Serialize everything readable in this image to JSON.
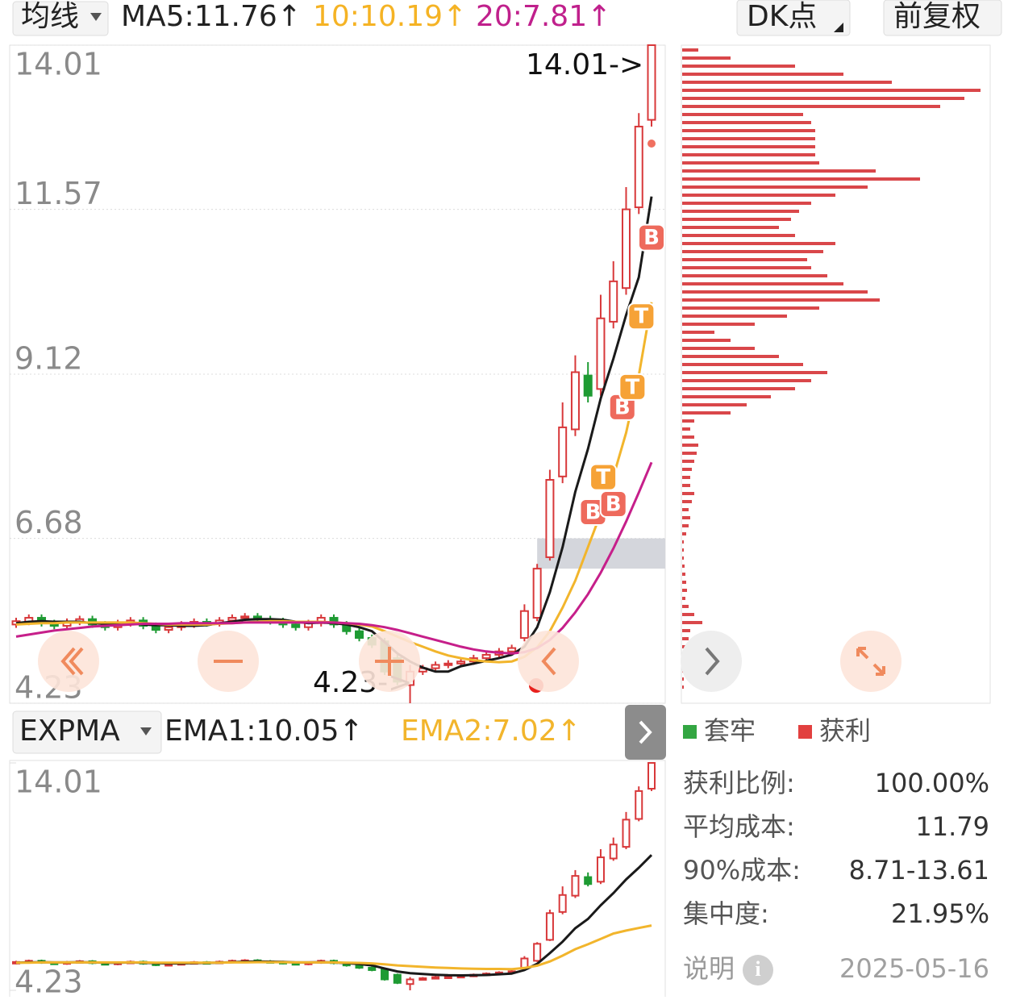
{
  "toolbar": {
    "indicator": "均线",
    "ma5_label": "MA5:11.76↑",
    "ma10_label": "10:10.19↑",
    "ma20_label": "20:7.81↑",
    "dk_button": "DK点",
    "adjust_button": "前复权"
  },
  "price_chart": {
    "type": "candlestick",
    "ylim": [
      4.23,
      14.01
    ],
    "yticks": [
      14.01,
      11.57,
      9.12,
      6.68,
      4.23
    ],
    "up_color": "#d8383a",
    "down_color": "#1e9b33",
    "open": [
      5.4,
      5.44,
      5.5,
      5.42,
      5.38,
      5.44,
      5.48,
      5.4,
      5.36,
      5.42,
      5.46,
      5.38,
      5.32,
      5.36,
      5.4,
      5.44,
      5.42,
      5.46,
      5.5,
      5.52,
      5.48,
      5.45,
      5.4,
      5.36,
      5.42,
      5.5,
      5.4,
      5.3,
      5.2,
      5.15,
      4.9,
      4.5,
      4.7,
      4.75,
      4.8,
      4.82,
      4.85,
      4.9,
      4.95,
      5.0,
      5.2,
      5.5,
      6.4,
      7.6,
      8.3,
      9.1,
      8.9,
      9.9,
      10.4,
      11.6,
      12.9
    ],
    "high": [
      5.5,
      5.55,
      5.55,
      5.47,
      5.49,
      5.53,
      5.53,
      5.45,
      5.47,
      5.51,
      5.51,
      5.43,
      5.41,
      5.45,
      5.49,
      5.49,
      5.51,
      5.55,
      5.57,
      5.57,
      5.53,
      5.5,
      5.45,
      5.47,
      5.55,
      5.55,
      5.45,
      5.35,
      5.25,
      5.2,
      4.95,
      4.8,
      4.8,
      4.85,
      4.87,
      4.9,
      4.95,
      5.0,
      5.05,
      5.1,
      5.7,
      6.3,
      7.7,
      8.7,
      9.4,
      9.3,
      10.3,
      10.8,
      11.9,
      13.0,
      14.01
    ],
    "low": [
      5.35,
      5.39,
      5.37,
      5.33,
      5.33,
      5.39,
      5.35,
      5.31,
      5.31,
      5.37,
      5.33,
      5.27,
      5.27,
      5.31,
      5.35,
      5.37,
      5.37,
      5.41,
      5.45,
      5.43,
      5.4,
      5.35,
      5.31,
      5.31,
      5.37,
      5.35,
      5.25,
      5.15,
      5.05,
      4.65,
      4.5,
      4.23,
      4.65,
      4.7,
      4.75,
      4.77,
      4.8,
      4.85,
      4.9,
      4.95,
      5.15,
      5.45,
      6.35,
      7.5,
      8.2,
      8.7,
      8.8,
      9.8,
      10.3,
      11.5,
      12.8
    ],
    "close": [
      5.45,
      5.5,
      5.42,
      5.38,
      5.44,
      5.48,
      5.4,
      5.36,
      5.42,
      5.46,
      5.38,
      5.32,
      5.36,
      5.4,
      5.44,
      5.42,
      5.46,
      5.5,
      5.52,
      5.48,
      5.45,
      5.4,
      5.36,
      5.42,
      5.5,
      5.4,
      5.3,
      5.2,
      5.1,
      4.7,
      4.55,
      4.7,
      4.75,
      4.8,
      4.82,
      4.85,
      4.9,
      4.95,
      5.0,
      5.05,
      5.6,
      6.23,
      7.55,
      8.33,
      9.15,
      8.8,
      9.95,
      10.5,
      11.57,
      12.8,
      14.01
    ],
    "ma": [
      {
        "name": "MA5",
        "color": "#1a1a1a",
        "values": [
          5.42,
          5.44,
          5.45,
          5.44,
          5.44,
          5.44,
          5.42,
          5.41,
          5.42,
          5.42,
          5.4,
          5.39,
          5.39,
          5.38,
          5.38,
          5.39,
          5.42,
          5.44,
          5.47,
          5.48,
          5.48,
          5.47,
          5.44,
          5.42,
          5.43,
          5.42,
          5.4,
          5.36,
          5.3,
          5.14,
          4.97,
          4.85,
          4.76,
          4.7,
          4.7,
          4.78,
          4.82,
          4.86,
          4.9,
          4.95,
          5.07,
          5.36,
          5.88,
          6.55,
          7.37,
          8.01,
          8.76,
          9.35,
          10.0,
          10.56,
          11.76
        ]
      },
      {
        "name": "MA10",
        "color": "#f2b52c",
        "values": [
          5.4,
          5.41,
          5.42,
          5.42,
          5.43,
          5.43,
          5.43,
          5.43,
          5.43,
          5.43,
          5.42,
          5.41,
          5.4,
          5.4,
          5.4,
          5.4,
          5.41,
          5.42,
          5.43,
          5.44,
          5.45,
          5.45,
          5.44,
          5.44,
          5.44,
          5.43,
          5.42,
          5.4,
          5.37,
          5.3,
          5.22,
          5.14,
          5.07,
          5.0,
          4.94,
          4.9,
          4.87,
          4.85,
          4.84,
          4.85,
          4.92,
          5.06,
          5.3,
          5.65,
          6.05,
          6.55,
          7.05,
          7.6,
          8.25,
          9.1,
          10.19
        ]
      },
      {
        "name": "MA20",
        "color": "#c61f8a",
        "values": [
          5.22,
          5.25,
          5.28,
          5.31,
          5.33,
          5.35,
          5.37,
          5.38,
          5.39,
          5.4,
          5.41,
          5.41,
          5.41,
          5.42,
          5.42,
          5.42,
          5.42,
          5.42,
          5.43,
          5.43,
          5.43,
          5.43,
          5.43,
          5.43,
          5.43,
          5.43,
          5.42,
          5.41,
          5.39,
          5.36,
          5.32,
          5.27,
          5.22,
          5.17,
          5.12,
          5.07,
          5.03,
          5.0,
          4.98,
          4.97,
          4.99,
          5.05,
          5.17,
          5.35,
          5.58,
          5.85,
          6.17,
          6.53,
          6.93,
          7.36,
          7.81
        ]
      }
    ],
    "high_marker": "14.01->",
    "low_marker": "4.23->",
    "zone": {
      "low": 6.23,
      "high": 6.68,
      "start_index": 41,
      "color": "#d4d6dc"
    },
    "signals": [
      {
        "label": "B",
        "index": 45.4,
        "price": 7.07,
        "color": "#ee6a5c"
      },
      {
        "label": "T",
        "index": 46.2,
        "price": 7.59,
        "color": "#f6a236"
      },
      {
        "label": "B",
        "index": 47.0,
        "price": 7.19,
        "color": "#ee6a5c"
      },
      {
        "label": "B",
        "index": 47.7,
        "price": 8.63,
        "color": "#ee6a5c"
      },
      {
        "label": "T",
        "index": 48.5,
        "price": 8.93,
        "color": "#f6a236"
      },
      {
        "label": "T",
        "index": 49.2,
        "price": 9.98,
        "color": "#f6a236"
      },
      {
        "label": "B",
        "index": 50.0,
        "price": 11.15,
        "color": "#ee6a5c"
      }
    ]
  },
  "chip": {
    "type": "bar",
    "color": "#d9474a",
    "values": [
      20,
      60,
      140,
      200,
      260,
      370,
      350,
      320,
      150,
      160,
      165,
      165,
      165,
      165,
      170,
      240,
      295,
      230,
      190,
      160,
      145,
      135,
      120,
      140,
      190,
      175,
      155,
      160,
      180,
      200,
      230,
      245,
      170,
      130,
      90,
      40,
      60,
      90,
      120,
      150,
      180,
      160,
      140,
      110,
      80,
      60,
      15,
      10,
      15,
      20,
      18,
      15,
      12,
      10,
      10,
      15,
      12,
      8,
      10,
      8,
      5,
      2,
      2,
      2,
      3,
      4,
      5,
      6,
      4,
      8,
      15,
      25,
      10,
      8,
      6,
      4,
      3,
      3,
      2,
      2
    ],
    "legend": [
      {
        "name": "套牢",
        "color": "#33a642"
      },
      {
        "name": "获利",
        "color": "#e2403f"
      }
    ],
    "stats": [
      [
        "获利比例:",
        "100.00%"
      ],
      [
        "平均成本:",
        "11.79"
      ],
      [
        "90%成本:",
        "8.71-13.61"
      ],
      [
        "集中度:",
        "21.95%"
      ]
    ],
    "note": "说明",
    "date": "2025-05-16"
  },
  "sub_chart": {
    "type": "candlestick",
    "indicator": "EXPMA",
    "ema1_label": "EMA1:10.05↑",
    "ema2_label": "EMA2:7.02↑",
    "ylim": [
      4.23,
      14.01
    ],
    "yticks": [
      14.01,
      4.23
    ],
    "ema": [
      {
        "name": "EMA1",
        "color": "#1a1a1a",
        "values": [
          5.42,
          5.43,
          5.44,
          5.43,
          5.43,
          5.44,
          5.43,
          5.42,
          5.42,
          5.43,
          5.42,
          5.4,
          5.39,
          5.39,
          5.4,
          5.41,
          5.42,
          5.44,
          5.46,
          5.47,
          5.46,
          5.45,
          5.43,
          5.43,
          5.44,
          5.43,
          5.4,
          5.36,
          5.3,
          5.17,
          5.04,
          4.97,
          4.93,
          4.9,
          4.88,
          4.87,
          4.88,
          4.89,
          4.92,
          4.95,
          5.1,
          5.37,
          5.83,
          6.32,
          6.9,
          7.3,
          7.89,
          8.41,
          9.0,
          9.5,
          10.05
        ]
      },
      {
        "name": "EMA2",
        "color": "#f2b52c",
        "values": [
          5.42,
          5.42,
          5.43,
          5.43,
          5.43,
          5.43,
          5.43,
          5.43,
          5.43,
          5.43,
          5.43,
          5.42,
          5.42,
          5.42,
          5.42,
          5.42,
          5.42,
          5.43,
          5.43,
          5.44,
          5.44,
          5.44,
          5.43,
          5.43,
          5.43,
          5.43,
          5.42,
          5.41,
          5.39,
          5.35,
          5.3,
          5.27,
          5.24,
          5.21,
          5.19,
          5.17,
          5.16,
          5.15,
          5.15,
          5.14,
          5.19,
          5.29,
          5.47,
          5.72,
          6.0,
          6.21,
          6.44,
          6.67,
          6.8,
          6.91,
          7.02
        ]
      }
    ]
  }
}
